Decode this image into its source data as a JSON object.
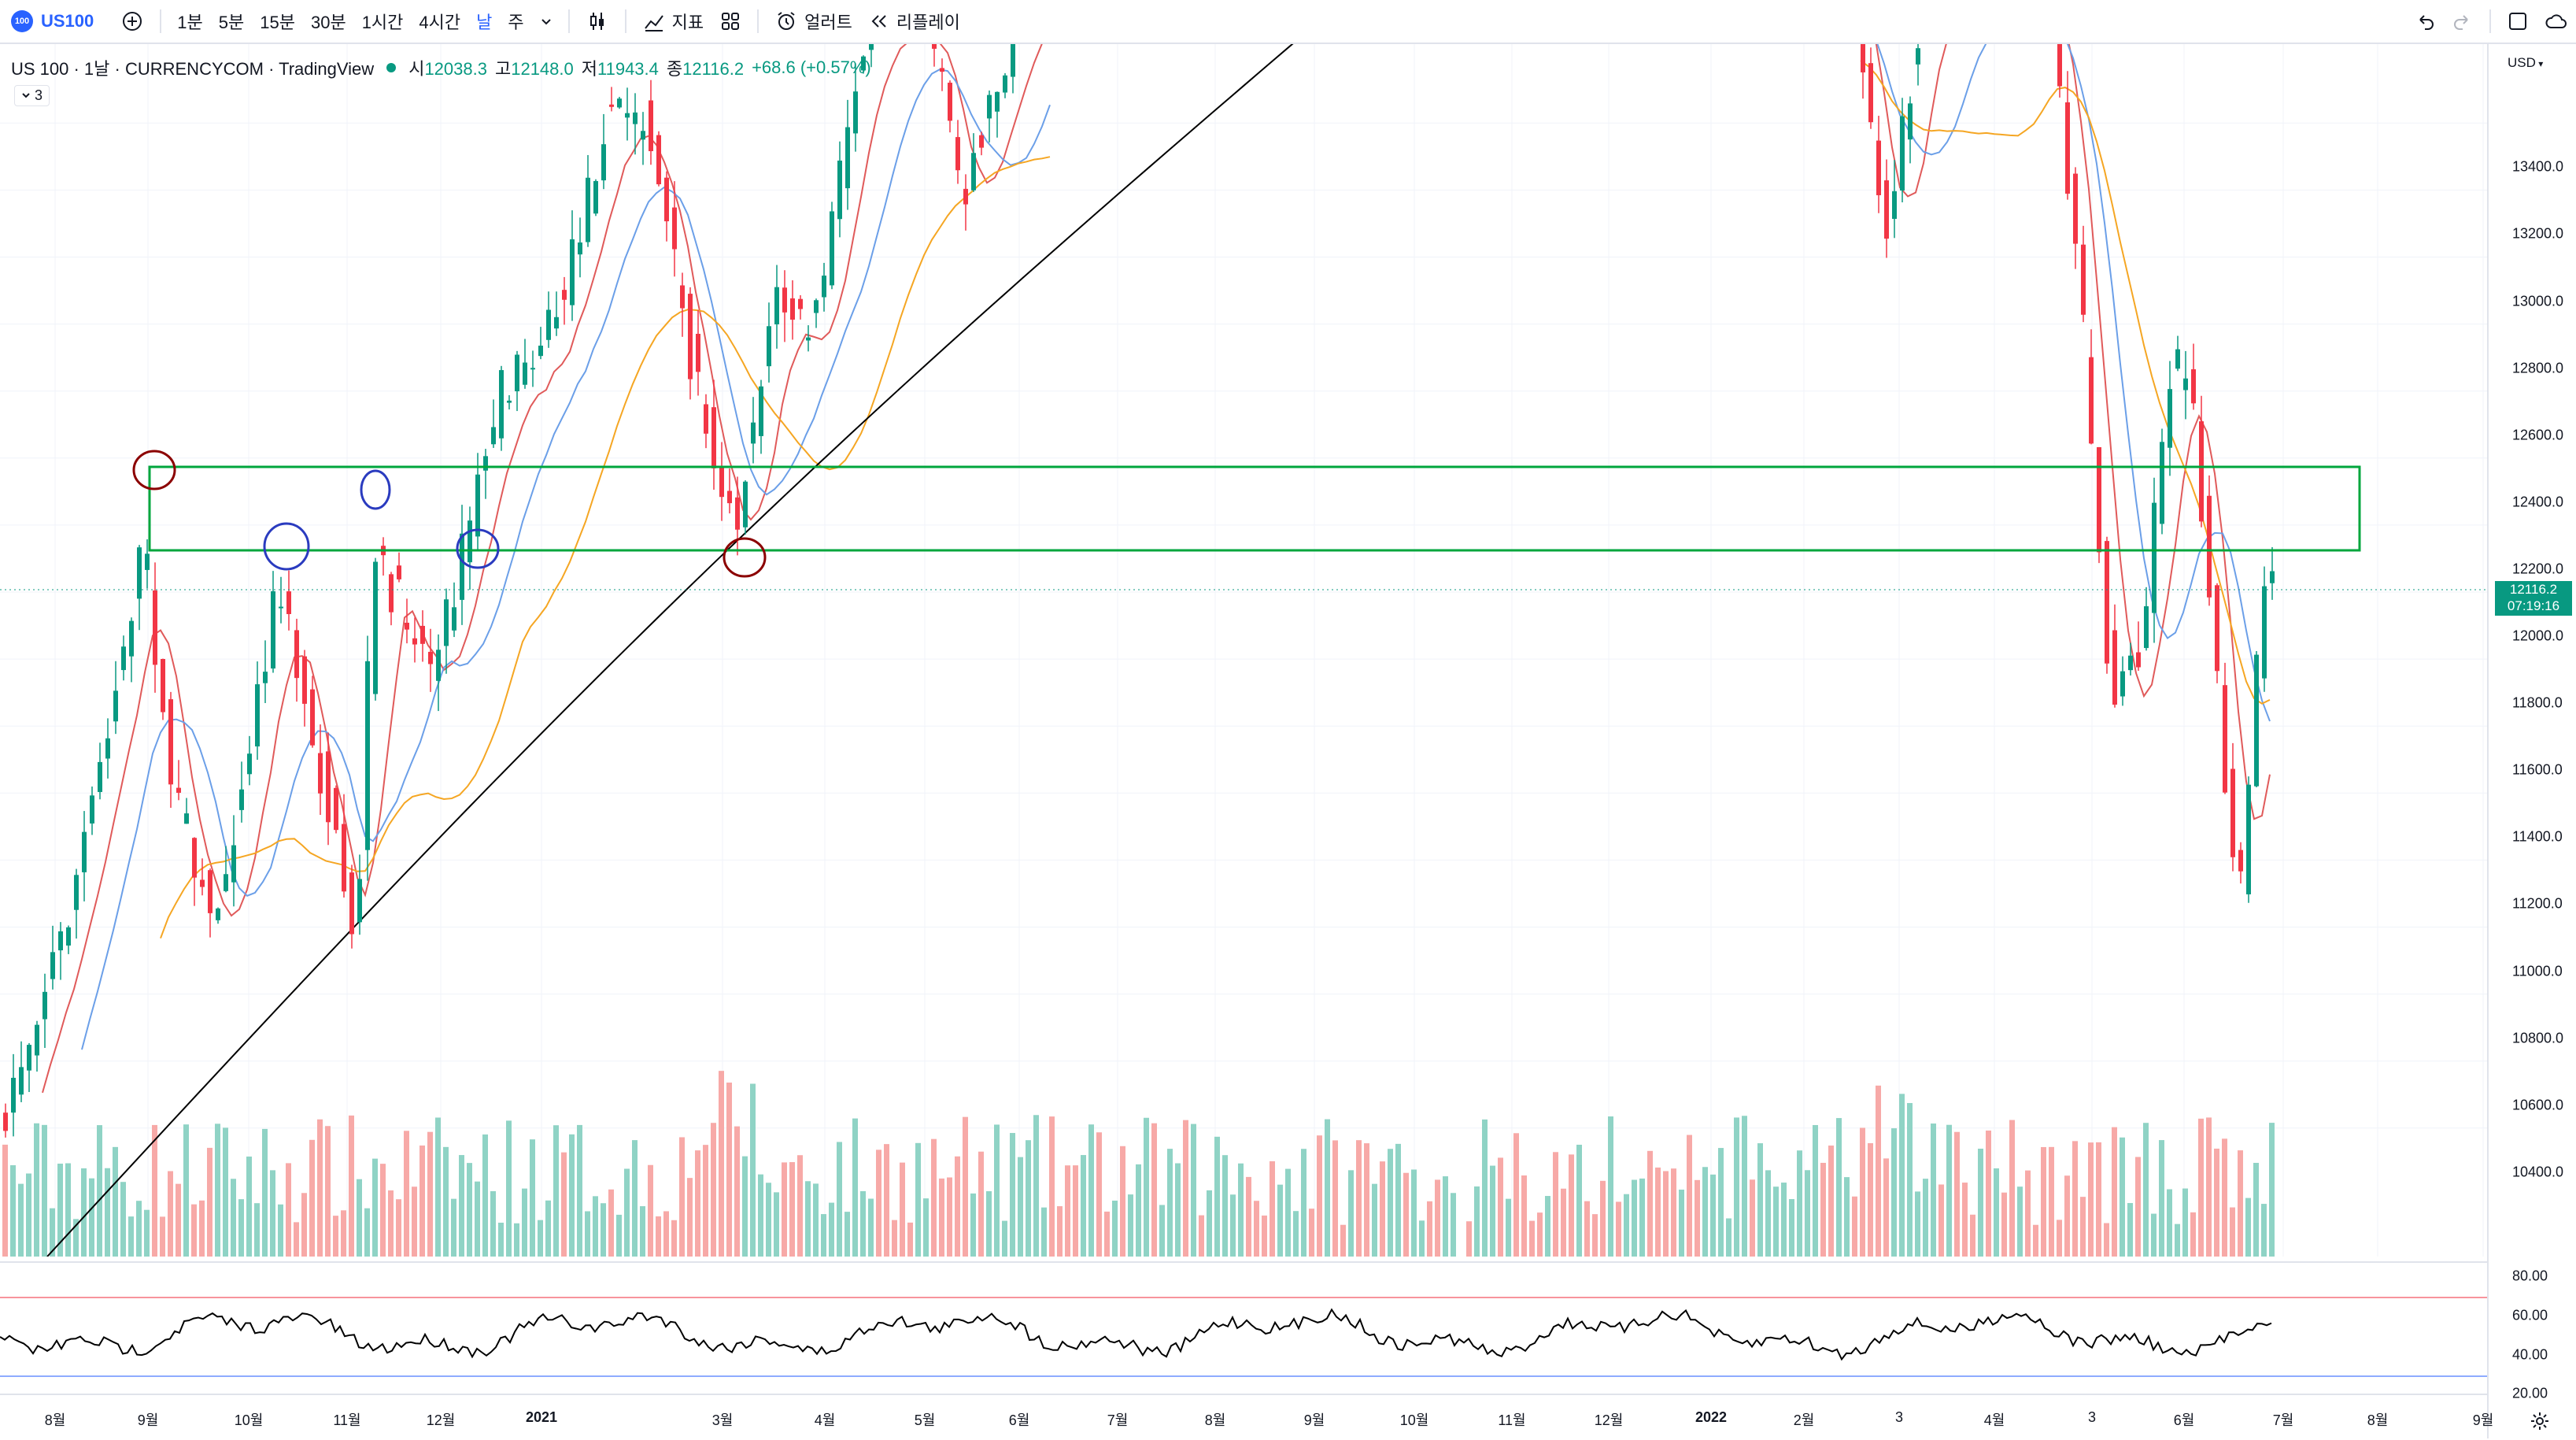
{
  "toolbar": {
    "symbol_badge": "100",
    "symbol": "US100",
    "add_symbol_icon": "plus-circle-icon",
    "intervals": [
      "1분",
      "5분",
      "15분",
      "30분",
      "1시간",
      "4시간",
      "날",
      "주"
    ],
    "active_interval": "날",
    "interval_dropdown_icon": "chevron-down-icon",
    "chart_type_icon": "candlestick-icon",
    "indicators_label": "지표",
    "templates_icon": "grid-icon",
    "alert_label": "얼러트",
    "replay_label": "리플레이",
    "undo_icon": "undo-icon",
    "redo_icon": "redo-icon",
    "fullscreen_icon": "square-icon",
    "cloud_icon": "cloud-icon"
  },
  "legend": {
    "title": "US 100 · 1날 · CURRENCYCOM · TradingView",
    "open_label": "시",
    "open": "12038.3",
    "high_label": "고",
    "high": "12148.0",
    "low_label": "저",
    "low": "11943.4",
    "close_label": "종",
    "close": "12116.2",
    "change": "+68.6 (+0.57%)",
    "indicator_count": "3"
  },
  "price_axis": {
    "currency": "USD",
    "labels": [
      "13400.0",
      "13200.0",
      "13000.0",
      "12800.0",
      "12600.0",
      "12400.0",
      "12200.0",
      "12000.0",
      "11800.0",
      "11600.0",
      "11400.0",
      "11200.0",
      "11000.0",
      "10800.0",
      "10600.0",
      "10400.0"
    ],
    "current_price": "12116.2",
    "countdown": "07:19:16"
  },
  "oscillator_axis": {
    "labels": [
      "80.00",
      "60.00",
      "40.00",
      "20.00"
    ]
  },
  "time_axis": {
    "labels": [
      "8월",
      "9월",
      "10월",
      "11월",
      "12월",
      "2021",
      "3월",
      "4월",
      "5월",
      "6월",
      "7월",
      "8월",
      "9월",
      "10월",
      "11월",
      "12월",
      "2022",
      "2월",
      "3",
      "4월",
      "3",
      "6월",
      "7월",
      "8월",
      "9월"
    ]
  },
  "settings_icon": "gear-icon",
  "colors": {
    "up": "#089981",
    "down": "#f23645",
    "volume_up": "#8fd3c5",
    "volume_down": "#f7a9a7",
    "ma_red": "#e05a5a",
    "ma_blue": "#6b9fe8",
    "ma_orange": "#f5a623",
    "ma_black": "#000000",
    "zone_green": "#00a63c",
    "circle_red": "#8b0000",
    "circle_blue": "#2a3bbf",
    "accent": "#2962ff"
  }
}
